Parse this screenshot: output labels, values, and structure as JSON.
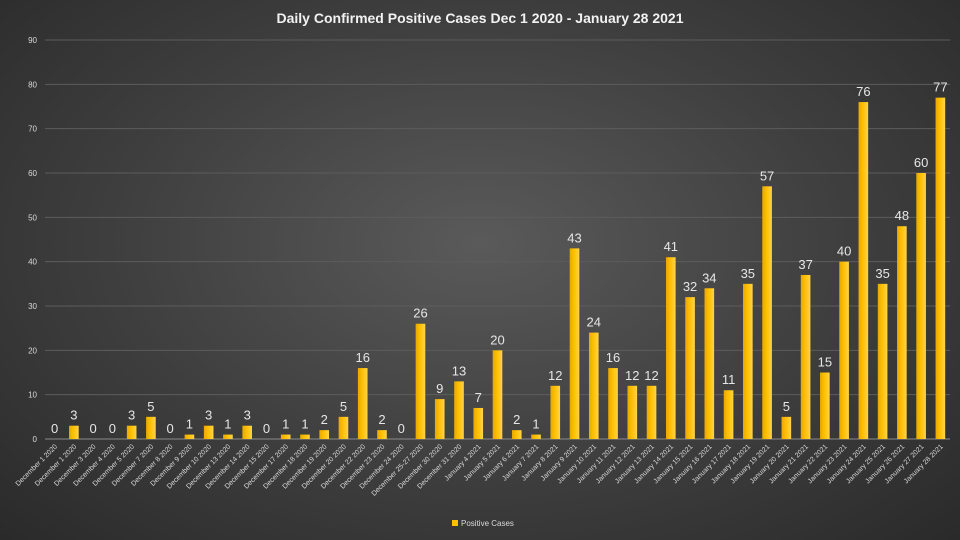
{
  "chart_data": {
    "type": "bar",
    "title": "Daily Confirmed Positive Cases Dec 1 2020 - January 28 2021",
    "xlabel": "",
    "ylabel": "",
    "ylim": [
      0,
      90
    ],
    "yticks": [
      0,
      10,
      20,
      30,
      40,
      50,
      60,
      70,
      80,
      90
    ],
    "grid": true,
    "legend_position": "bottom",
    "bar_color": "#ffc000",
    "categories": [
      "December 1 2020",
      "December 1 2020",
      "December 3 2020",
      "December 4 2020",
      "December 5 2020",
      "December 7 2020",
      "December 8 2020",
      "December 9 2020",
      "December 10 2020",
      "December 13 2020",
      "December 14 2020",
      "December 15 2020",
      "December 17 2020",
      "December 18 2020",
      "December 19 2020",
      "December 20 2020",
      "December 22 2020",
      "December 23 2020",
      "December 24 2020",
      "December 25-27 2020",
      "December 30 2020",
      "December 31 2020",
      "January 4 2021",
      "January 5 2021",
      "January 6 2021",
      "January 7 2021",
      "January 8 2021",
      "January 9 2021",
      "January 10 2021",
      "January 11 2021",
      "January 12 2021",
      "January 13 2021",
      "January 14 2021",
      "January 15 2021",
      "January 16 2021",
      "January 17 2021",
      "January 18 2021",
      "January 19 2021",
      "January 20 2021",
      "January 21 2021",
      "January 22 2021",
      "January 23 2021",
      "January 24 2021",
      "January 25 2021",
      "January 26 2021",
      "January 27 2021",
      "January 28 2021"
    ],
    "series": [
      {
        "name": "Positive Cases",
        "values": [
          0,
          3,
          0,
          0,
          3,
          5,
          0,
          1,
          3,
          1,
          3,
          0,
          1,
          1,
          2,
          5,
          16,
          2,
          0,
          26,
          9,
          13,
          7,
          20,
          2,
          1,
          12,
          43,
          24,
          16,
          12,
          12,
          41,
          32,
          34,
          11,
          35,
          57,
          5,
          37,
          15,
          40,
          76,
          35,
          48,
          60,
          77
        ]
      }
    ]
  }
}
